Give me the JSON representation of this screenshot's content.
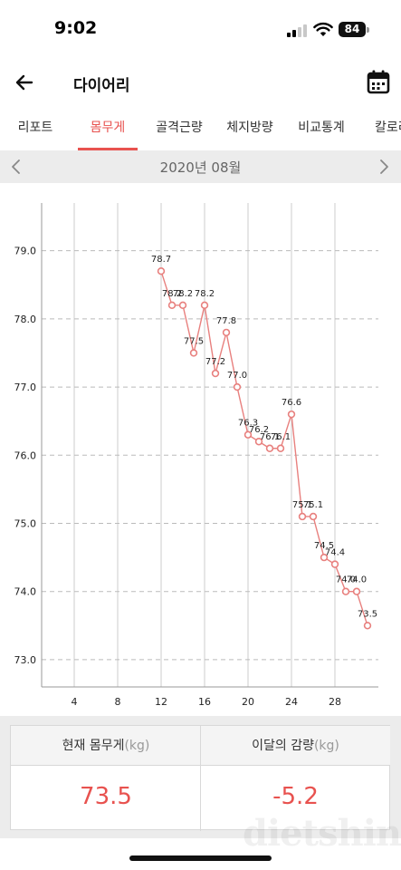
{
  "status_bar": {
    "time": "9:02",
    "battery": "84"
  },
  "header": {
    "title": "다이어리"
  },
  "tabs": [
    {
      "label": "리포트"
    },
    {
      "label": "몸무게"
    },
    {
      "label": "골격근량"
    },
    {
      "label": "체지방량"
    },
    {
      "label": "비교통계"
    },
    {
      "label": "칼로리"
    }
  ],
  "active_tab": 1,
  "month_selector": {
    "label": "2020년 08월"
  },
  "chart_data": {
    "type": "line",
    "x": [
      12,
      13,
      14,
      15,
      16,
      17,
      18,
      19,
      20,
      21,
      22,
      23,
      24,
      25,
      26,
      27,
      28,
      29,
      30,
      31
    ],
    "values": [
      78.7,
      78.2,
      78.2,
      77.5,
      78.2,
      77.2,
      77.8,
      77.0,
      76.3,
      76.2,
      76.1,
      76.1,
      76.6,
      75.1,
      75.1,
      74.5,
      74.4,
      74.0,
      74.0,
      73.5
    ],
    "point_labels": [
      "78.7",
      "78.2",
      "78.2",
      "77.5",
      "78.2",
      "77.2",
      "77.8",
      "77.0",
      "76.3",
      "76.2",
      "76.1",
      "76.1",
      "76.6",
      "75.1",
      "75.1",
      "74.5",
      "74.4",
      "74.0",
      "74.0",
      "73.5"
    ],
    "x_ticks": [
      4,
      8,
      12,
      16,
      20,
      24,
      28
    ],
    "y_ticks": [
      "79.0",
      "78.0",
      "77.0",
      "76.0",
      "75.0",
      "74.0",
      "73.0"
    ],
    "xlim": [
      1,
      32
    ],
    "ylim": [
      72.6,
      79.7
    ],
    "grid": true,
    "line_color": "#e8807e",
    "title": "",
    "xlabel": "",
    "ylabel": ""
  },
  "summary": {
    "current_weight_label": "현재 몸무게",
    "current_weight_unit": "(kg)",
    "current_weight_value": "73.5",
    "monthly_change_label": "이달의 감량",
    "monthly_change_unit": "(kg)",
    "monthly_change_value": "-5.2"
  },
  "colors": {
    "accent": "#e8524f",
    "month_bar_bg": "#ececec"
  },
  "watermark": "dietshin.com"
}
